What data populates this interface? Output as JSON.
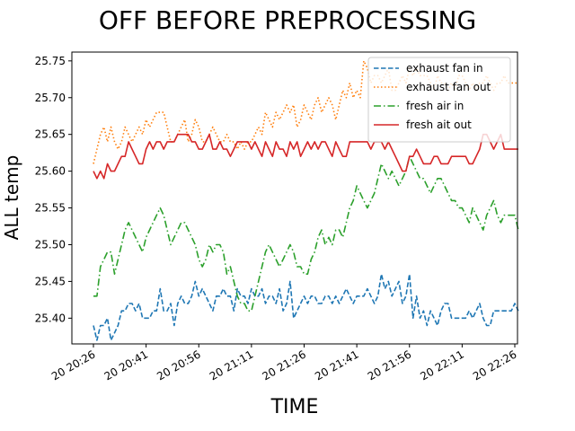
{
  "chart_data": {
    "type": "line",
    "title": "OFF BEFORE PREPROCESSING",
    "xlabel": "TIME",
    "ylabel": "ALL temp",
    "x_ticks": [
      "20 20:26",
      "20 20:41",
      "20 20:56",
      "20 21:11",
      "20 21:26",
      "20 21:41",
      "20 21:56",
      "20 22:11",
      "20 22:26"
    ],
    "y_ticks": [
      "25.40",
      "25.45",
      "25.50",
      "25.55",
      "25.60",
      "25.65",
      "25.70",
      "25.75"
    ],
    "x_time_range": [
      "20 20:26",
      "20 22:26"
    ],
    "ylim": [
      25.365,
      25.762
    ],
    "legend_position": "top-right",
    "sample_interval_minutes": 1,
    "series": [
      {
        "name": "exhaust fan in",
        "color": "#1f77b4",
        "style": "dashed",
        "values": [
          25.39,
          25.37,
          25.39,
          25.39,
          25.4,
          25.37,
          25.38,
          25.39,
          25.41,
          25.41,
          25.42,
          25.42,
          25.41,
          25.42,
          25.4,
          25.4,
          25.4,
          25.41,
          25.41,
          25.44,
          25.41,
          25.41,
          25.42,
          25.39,
          25.42,
          25.43,
          25.42,
          25.42,
          25.43,
          25.45,
          25.43,
          25.44,
          25.43,
          25.42,
          25.41,
          25.43,
          25.43,
          25.44,
          25.43,
          25.43,
          25.41,
          25.44,
          25.43,
          25.43,
          25.42,
          25.44,
          25.43,
          25.43,
          25.44,
          25.42,
          25.43,
          25.43,
          25.42,
          25.44,
          25.41,
          25.42,
          25.45,
          25.4,
          25.41,
          25.42,
          25.43,
          25.42,
          25.43,
          25.43,
          25.42,
          25.42,
          25.43,
          25.43,
          25.42,
          25.43,
          25.42,
          25.43,
          25.44,
          25.43,
          25.42,
          25.43,
          25.43,
          25.43,
          25.44,
          25.43,
          25.42,
          25.43,
          25.46,
          25.44,
          25.45,
          25.43,
          25.44,
          25.45,
          25.42,
          25.43,
          25.46,
          25.4,
          25.43,
          25.4,
          25.41,
          25.39,
          25.41,
          25.4,
          25.39,
          25.41,
          25.42,
          25.42,
          25.4,
          25.4,
          25.4,
          25.4,
          25.4,
          25.41,
          25.4,
          25.41,
          25.42,
          25.4,
          25.39,
          25.39,
          25.41,
          25.41,
          25.41,
          25.41,
          25.41,
          25.41,
          25.42,
          25.41
        ]
      },
      {
        "name": "exhaust fan out",
        "color": "#ff7f0e",
        "style": "dotted",
        "values": [
          25.61,
          25.63,
          25.65,
          25.66,
          25.64,
          25.66,
          25.64,
          25.63,
          25.64,
          25.66,
          25.65,
          25.64,
          25.65,
          25.66,
          25.65,
          25.67,
          25.66,
          25.67,
          25.68,
          25.68,
          25.68,
          25.66,
          25.64,
          25.64,
          25.65,
          25.66,
          25.67,
          25.64,
          25.65,
          25.67,
          25.66,
          25.64,
          25.64,
          25.65,
          25.66,
          25.65,
          25.64,
          25.64,
          25.65,
          25.64,
          25.64,
          25.63,
          25.64,
          25.63,
          25.64,
          25.64,
          25.65,
          25.66,
          25.65,
          25.68,
          25.67,
          25.66,
          25.68,
          25.67,
          25.68,
          25.69,
          25.68,
          25.69,
          25.66,
          25.67,
          25.69,
          25.68,
          25.67,
          25.69,
          25.7,
          25.68,
          25.69,
          25.7,
          25.69,
          25.67,
          25.69,
          25.71,
          25.7,
          25.72,
          25.7,
          25.71,
          25.7,
          25.75,
          25.74,
          25.72,
          25.73,
          25.73,
          25.72,
          25.73,
          25.74,
          25.71,
          25.71,
          25.72,
          25.73,
          25.72,
          25.74,
          25.73,
          25.74,
          25.73,
          25.73,
          25.73,
          25.72,
          25.71,
          25.73,
          25.72,
          25.72,
          25.71,
          25.72,
          25.71,
          25.73,
          25.73,
          25.72,
          25.71,
          25.72,
          25.71,
          25.72,
          25.72,
          25.73,
          25.72,
          25.71,
          25.72,
          25.72,
          25.73,
          25.72,
          25.72,
          25.72,
          25.72
        ]
      },
      {
        "name": "fresh air in",
        "color": "#2ca02c",
        "style": "dashdot",
        "values": [
          25.43,
          25.43,
          25.47,
          25.48,
          25.49,
          25.49,
          25.46,
          25.48,
          25.5,
          25.52,
          25.53,
          25.52,
          25.51,
          25.5,
          25.49,
          25.51,
          25.52,
          25.53,
          25.54,
          25.55,
          25.54,
          25.52,
          25.5,
          25.51,
          25.52,
          25.53,
          25.53,
          25.52,
          25.51,
          25.5,
          25.48,
          25.47,
          25.48,
          25.5,
          25.49,
          25.5,
          25.5,
          25.49,
          25.46,
          25.47,
          25.45,
          25.43,
          25.42,
          25.42,
          25.41,
          25.41,
          25.43,
          25.45,
          25.47,
          25.49,
          25.5,
          25.49,
          25.48,
          25.47,
          25.48,
          25.49,
          25.5,
          25.49,
          25.47,
          25.47,
          25.46,
          25.46,
          25.48,
          25.49,
          25.51,
          25.52,
          25.5,
          25.51,
          25.5,
          25.52,
          25.52,
          25.51,
          25.53,
          25.55,
          25.56,
          25.58,
          25.57,
          25.56,
          25.55,
          25.56,
          25.57,
          25.59,
          25.61,
          25.6,
          25.59,
          25.6,
          25.59,
          25.58,
          25.59,
          25.6,
          25.62,
          25.61,
          25.6,
          25.59,
          25.59,
          25.58,
          25.57,
          25.58,
          25.59,
          25.59,
          25.58,
          25.57,
          25.56,
          25.56,
          25.55,
          25.55,
          25.54,
          25.53,
          25.55,
          25.54,
          25.53,
          25.52,
          25.54,
          25.55,
          25.56,
          25.54,
          25.53,
          25.54,
          25.54,
          25.54,
          25.54,
          25.52
        ]
      },
      {
        "name": "fresh ait out",
        "color": "#d62728",
        "style": "solid",
        "values": [
          25.6,
          25.59,
          25.6,
          25.59,
          25.61,
          25.6,
          25.6,
          25.61,
          25.62,
          25.62,
          25.64,
          25.63,
          25.62,
          25.61,
          25.61,
          25.63,
          25.64,
          25.63,
          25.64,
          25.64,
          25.63,
          25.64,
          25.64,
          25.64,
          25.65,
          25.65,
          25.65,
          25.65,
          25.64,
          25.64,
          25.63,
          25.63,
          25.64,
          25.65,
          25.63,
          25.63,
          25.64,
          25.63,
          25.63,
          25.62,
          25.63,
          25.64,
          25.64,
          25.64,
          25.64,
          25.63,
          25.64,
          25.63,
          25.62,
          25.64,
          25.63,
          25.62,
          25.64,
          25.63,
          25.63,
          25.62,
          25.64,
          25.63,
          25.64,
          25.62,
          25.63,
          25.64,
          25.63,
          25.64,
          25.63,
          25.64,
          25.64,
          25.63,
          25.62,
          25.64,
          25.63,
          25.62,
          25.62,
          25.64,
          25.64,
          25.64,
          25.64,
          25.64,
          25.64,
          25.63,
          25.64,
          25.64,
          25.64,
          25.63,
          25.64,
          25.63,
          25.62,
          25.61,
          25.6,
          25.6,
          25.62,
          25.62,
          25.63,
          25.62,
          25.61,
          25.61,
          25.61,
          25.62,
          25.62,
          25.61,
          25.61,
          25.61,
          25.62,
          25.62,
          25.62,
          25.62,
          25.62,
          25.61,
          25.61,
          25.62,
          25.63,
          25.65,
          25.65,
          25.64,
          25.63,
          25.64,
          25.65,
          25.63,
          25.63,
          25.63,
          25.63,
          25.63
        ]
      }
    ]
  }
}
